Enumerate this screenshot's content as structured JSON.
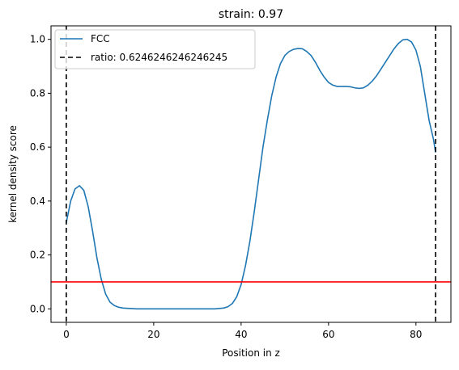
{
  "chart_data": {
    "type": "line",
    "title": "strain: 0.97",
    "xlabel": "Position in z",
    "ylabel": "kernel density score",
    "xlim": [
      -3.5,
      88
    ],
    "ylim": [
      -0.05,
      1.05
    ],
    "xticks": [
      0,
      20,
      40,
      60,
      80
    ],
    "xtick_labels": [
      "0",
      "20",
      "40",
      "60",
      "80"
    ],
    "yticks": [
      0.0,
      0.2,
      0.4,
      0.6,
      0.8,
      1.0
    ],
    "ytick_labels": [
      "0.0",
      "0.2",
      "0.4",
      "0.6",
      "0.8",
      "1.0"
    ],
    "grid": false,
    "legend_position": "upper-left",
    "series": [
      {
        "name": "FCC",
        "color": "#1f77b4",
        "style": "solid",
        "x": [
          0,
          1,
          2,
          3,
          4,
          5,
          6,
          7,
          8,
          9,
          10,
          11,
          12,
          13,
          14,
          15,
          16,
          18,
          20,
          25,
          30,
          34,
          36,
          37,
          38,
          39,
          40,
          41,
          42,
          43,
          44,
          45,
          46,
          47,
          48,
          49,
          50,
          51,
          52,
          53,
          54,
          55,
          56,
          57,
          58,
          59,
          60,
          61,
          62,
          63,
          64,
          65,
          66,
          67,
          68,
          69,
          70,
          71,
          72,
          73,
          74,
          75,
          76,
          77,
          78,
          79,
          80,
          81,
          82,
          83,
          84,
          84.5
        ],
        "y": [
          0.32,
          0.4,
          0.445,
          0.457,
          0.44,
          0.38,
          0.29,
          0.19,
          0.11,
          0.055,
          0.025,
          0.012,
          0.006,
          0.003,
          0.002,
          0.001,
          0.0,
          0.0,
          0.0,
          0.0,
          0.0,
          0.0,
          0.003,
          0.008,
          0.02,
          0.045,
          0.09,
          0.16,
          0.25,
          0.36,
          0.48,
          0.6,
          0.7,
          0.79,
          0.86,
          0.91,
          0.94,
          0.955,
          0.963,
          0.966,
          0.965,
          0.955,
          0.94,
          0.915,
          0.885,
          0.86,
          0.84,
          0.83,
          0.825,
          0.825,
          0.825,
          0.824,
          0.82,
          0.818,
          0.82,
          0.83,
          0.845,
          0.865,
          0.89,
          0.915,
          0.94,
          0.965,
          0.985,
          0.998,
          1.0,
          0.99,
          0.96,
          0.9,
          0.8,
          0.7,
          0.63,
          0.58
        ]
      },
      {
        "name": "ratio: 0.6246246246246245",
        "color": "#000000",
        "style": "dashed",
        "vlines": [
          0,
          84.5
        ]
      }
    ],
    "hlines": [
      {
        "y": 0.1,
        "color": "#ff0000",
        "style": "solid"
      }
    ]
  }
}
